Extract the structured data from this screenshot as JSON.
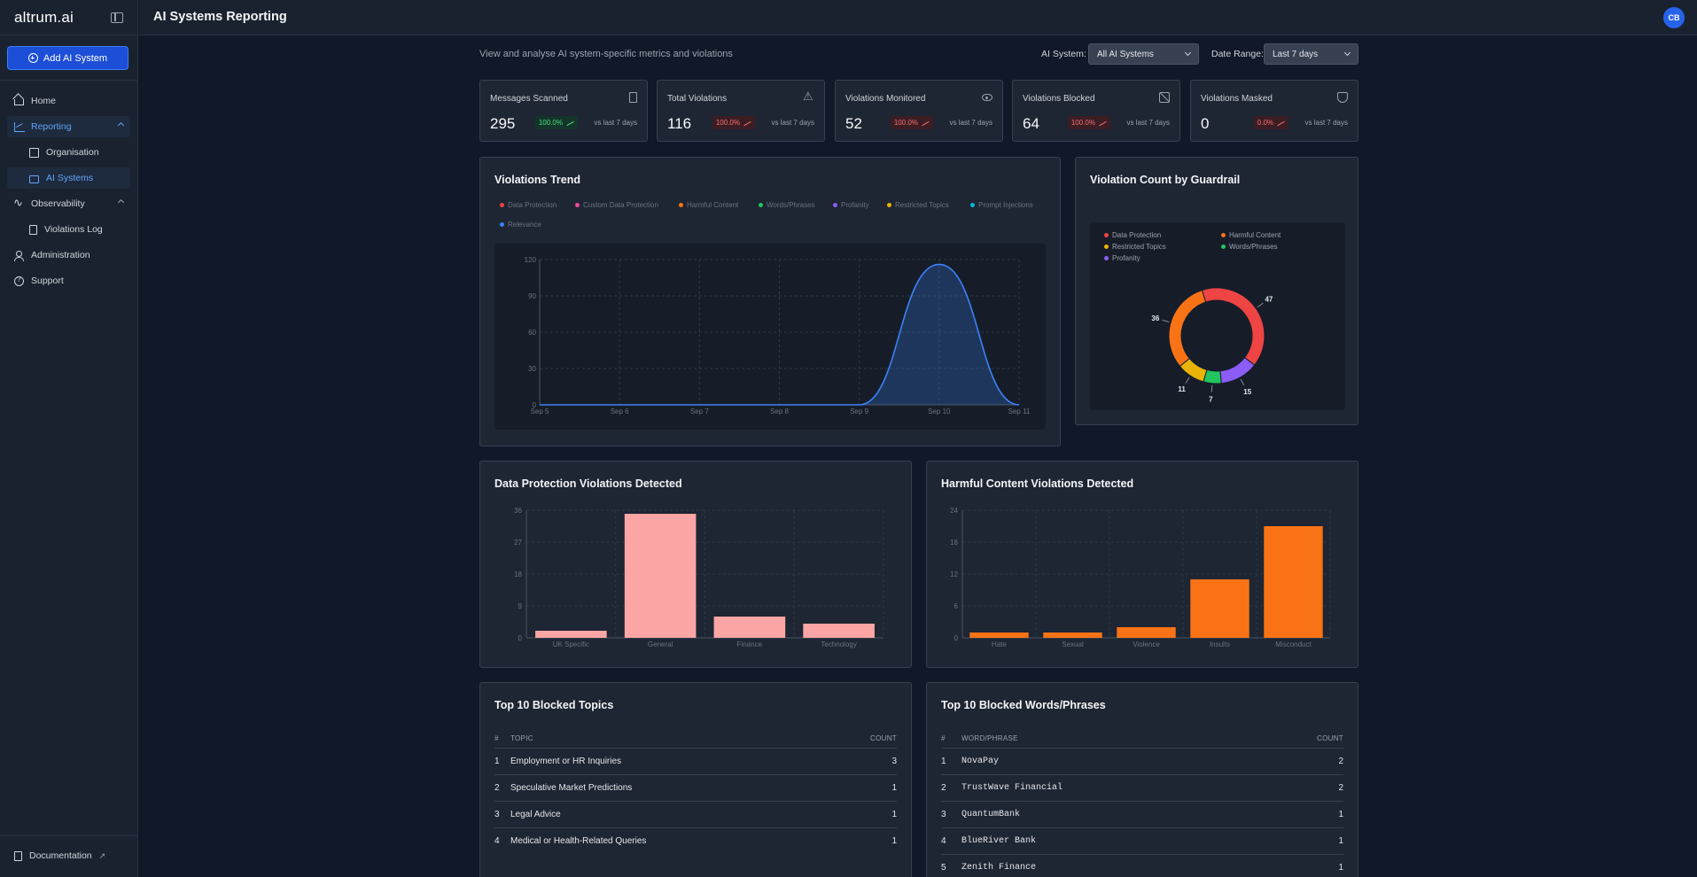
{
  "app": {
    "logo": "altrum.ai",
    "page_title": "AI Systems Reporting",
    "avatar_initials": "CB",
    "accent": "#2563eb"
  },
  "sidebar": {
    "add_button": "Add AI System",
    "items": [
      {
        "label": "Home",
        "icon": "home-icon"
      },
      {
        "label": "Reporting",
        "icon": "chart-icon"
      },
      {
        "label": "Organisation",
        "icon": "building-icon"
      },
      {
        "label": "AI Systems",
        "icon": "folder-icon"
      },
      {
        "label": "Observability",
        "icon": "pulse-icon"
      },
      {
        "label": "Violations Log",
        "icon": "file-icon"
      },
      {
        "label": "Administration",
        "icon": "users-icon"
      },
      {
        "label": "Support",
        "icon": "help-icon"
      }
    ],
    "documentation": "Documentation"
  },
  "filters": {
    "subtitle": "View and analyse AI system-specific metrics and violations",
    "ai_system_label": "AI System:",
    "ai_system_value": "All AI Systems",
    "date_range_label": "Date Range:",
    "date_range_value": "Last 7 days"
  },
  "stats": [
    {
      "title": "Messages Scanned",
      "value": "295",
      "change": "100.0%",
      "trend": "up",
      "color": "green",
      "vs": "vs last 7 days",
      "icon": "document-icon"
    },
    {
      "title": "Total Violations",
      "value": "116",
      "change": "100.0%",
      "trend": "up",
      "color": "red",
      "vs": "vs last 7 days",
      "icon": "warning-icon"
    },
    {
      "title": "Violations Monitored",
      "value": "52",
      "change": "100.0%",
      "trend": "up",
      "color": "red",
      "vs": "vs last 7 days",
      "icon": "eye-icon"
    },
    {
      "title": "Violations Blocked",
      "value": "64",
      "change": "100.0%",
      "trend": "up",
      "color": "red",
      "vs": "vs last 7 days",
      "icon": "blocked-icon"
    },
    {
      "title": "Violations Masked",
      "value": "0",
      "change": "0.0%",
      "trend": "up",
      "color": "red",
      "vs": "vs last 7 days",
      "icon": "shield-icon"
    }
  ],
  "trend_chart": {
    "title": "Violations Trend",
    "legend": [
      {
        "name": "Data Protection",
        "color": "#ef4444"
      },
      {
        "name": "Custom Data Protection",
        "color": "#ec4899"
      },
      {
        "name": "Harmful Content",
        "color": "#f97316"
      },
      {
        "name": "Words/Phrases",
        "color": "#22c55e"
      },
      {
        "name": "Profanity",
        "color": "#8b5cf6"
      },
      {
        "name": "Restricted Topics",
        "color": "#eab308"
      },
      {
        "name": "Prompt Injections",
        "color": "#06b6d4"
      },
      {
        "name": "Relevance",
        "color": "#3b82f6"
      }
    ]
  },
  "guardrail_chart": {
    "title": "Violation Count by Guardrail",
    "legend": [
      {
        "name": "Data Protection",
        "color": "#ef4444"
      },
      {
        "name": "Harmful Content",
        "color": "#f97316"
      },
      {
        "name": "Restricted Topics",
        "color": "#eab308"
      },
      {
        "name": "Words/Phrases",
        "color": "#22c55e"
      },
      {
        "name": "Profanity",
        "color": "#8b5cf6"
      }
    ]
  },
  "data_protection_chart": {
    "title": "Data Protection Violations Detected"
  },
  "harmful_content_chart": {
    "title": "Harmful Content Violations Detected"
  },
  "chart_data": [
    {
      "type": "area",
      "x": [
        "Sep 5",
        "Sep 6",
        "Sep 7",
        "Sep 8",
        "Sep 9",
        "Sep 10",
        "Sep 11"
      ],
      "series": [
        {
          "name": "Relevance",
          "values": [
            0,
            0,
            0,
            0,
            0,
            116,
            0
          ]
        }
      ],
      "ylim": [
        0,
        120
      ],
      "yticks": [
        0,
        30,
        60,
        90,
        120
      ],
      "grid": true
    },
    {
      "type": "pie",
      "labels": [
        "Data Protection",
        "Profanity",
        "Words/Phrases",
        "Restricted Topics",
        "Harmful Content"
      ],
      "values": [
        47,
        15,
        7,
        11,
        36
      ],
      "colors": [
        "#ef4444",
        "#8b5cf6",
        "#22c55e",
        "#eab308",
        "#f97316"
      ],
      "donut": true
    },
    {
      "type": "bar",
      "categories": [
        "UK Specific",
        "General",
        "Finance",
        "Technology"
      ],
      "values": [
        2,
        35,
        6,
        4
      ],
      "ylim": [
        0,
        36
      ],
      "yticks": [
        0,
        9,
        18,
        27,
        36
      ],
      "color": "#fca5a5",
      "grid": true
    },
    {
      "type": "bar",
      "categories": [
        "Hate",
        "Sexual",
        "Violence",
        "Insults",
        "Misconduct"
      ],
      "values": [
        1,
        1,
        2,
        11,
        21
      ],
      "ylim": [
        0,
        24
      ],
      "yticks": [
        0,
        6,
        12,
        18,
        24
      ],
      "color": "#f97316",
      "grid": true
    }
  ],
  "topics_table": {
    "title": "Top 10 Blocked Topics",
    "columns": [
      "#",
      "TOPIC",
      "COUNT"
    ],
    "rows": [
      {
        "rank": "1",
        "name": "Employment or HR Inquiries",
        "count": "3"
      },
      {
        "rank": "2",
        "name": "Speculative Market Predictions",
        "count": "1"
      },
      {
        "rank": "3",
        "name": "Legal Advice",
        "count": "1"
      },
      {
        "rank": "4",
        "name": "Medical or Health-Related Queries",
        "count": "1"
      }
    ]
  },
  "words_table": {
    "title": "Top 10 Blocked Words/Phrases",
    "columns": [
      "#",
      "WORD/PHRASE",
      "COUNT"
    ],
    "rows": [
      {
        "rank": "1",
        "name": "NovaPay",
        "count": "2"
      },
      {
        "rank": "2",
        "name": "TrustWave Financial",
        "count": "2"
      },
      {
        "rank": "3",
        "name": "QuantumBank",
        "count": "1"
      },
      {
        "rank": "4",
        "name": "BlueRiver Bank",
        "count": "1"
      },
      {
        "rank": "5",
        "name": "Zenith Finance",
        "count": "1"
      }
    ]
  }
}
